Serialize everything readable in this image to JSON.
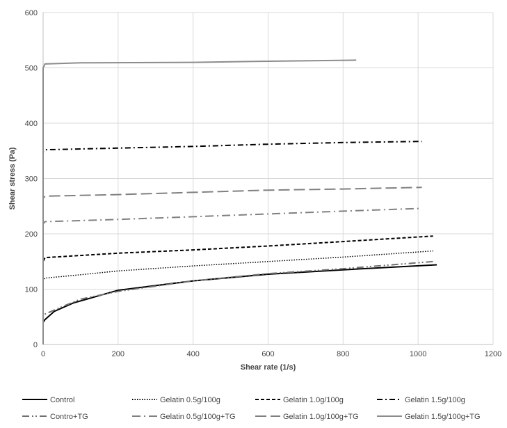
{
  "chart_data": {
    "type": "line",
    "title": "",
    "xlabel": "Shear rate (1/s)",
    "ylabel": "Shear stress (Pa)",
    "xlim": [
      0,
      1200
    ],
    "ylim": [
      0,
      600
    ],
    "xticks": [
      0,
      200,
      400,
      600,
      800,
      1000,
      1200
    ],
    "yticks": [
      0,
      100,
      200,
      300,
      400,
      500,
      600
    ],
    "grid": true,
    "legend_position": "bottom",
    "series": [
      {
        "name": "Control",
        "color": "#000000",
        "style": "solid",
        "x": [
          0,
          0,
          5,
          30,
          80,
          200,
          400,
          600,
          800,
          1050
        ],
        "y": [
          0,
          40,
          45,
          60,
          75,
          98,
          115,
          127,
          135,
          144
        ]
      },
      {
        "name": "Gelatin 0.5g/100g",
        "color": "#000000",
        "style": "dotted",
        "x": [
          0,
          0,
          5,
          100,
          200,
          400,
          600,
          800,
          1040
        ],
        "y": [
          0,
          115,
          120,
          126,
          133,
          142,
          150,
          158,
          169
        ]
      },
      {
        "name": "Gelatin 1.0g/100g",
        "color": "#000000",
        "style": "dashed",
        "x": [
          0,
          0,
          5,
          200,
          400,
          600,
          800,
          1040
        ],
        "y": [
          0,
          150,
          157,
          165,
          171,
          178,
          186,
          196
        ]
      },
      {
        "name": "Gelatin 1.5g/100g",
        "color": "#000000",
        "style": "dashdot",
        "x": [
          0,
          0,
          5,
          200,
          400,
          600,
          800,
          1010
        ],
        "y": [
          0,
          348,
          352,
          355,
          358,
          362,
          365,
          367
        ]
      },
      {
        "name": "Contro+TG",
        "color": "#707070",
        "style": "longdashdotdot",
        "x": [
          0,
          0,
          5,
          50,
          100,
          200,
          400,
          600,
          800,
          1040
        ],
        "y": [
          0,
          50,
          55,
          68,
          82,
          96,
          115,
          128,
          137,
          150
        ]
      },
      {
        "name": "Gelatin 0.5g/100g+TG",
        "color": "#808080",
        "style": "longdashdot",
        "x": [
          0,
          0,
          5,
          200,
          400,
          600,
          800,
          1010
        ],
        "y": [
          0,
          218,
          222,
          226,
          231,
          236,
          241,
          246
        ]
      },
      {
        "name": "Gelatin 1.0g/100g+TG",
        "color": "#808080",
        "style": "longdash",
        "x": [
          0,
          0,
          5,
          200,
          400,
          600,
          800,
          1010
        ],
        "y": [
          0,
          264,
          268,
          271,
          275,
          279,
          281,
          284
        ]
      },
      {
        "name": "Gelatin 1.5g/100g+TG",
        "color": "#8c8c8c",
        "style": "solid",
        "x": [
          0,
          0,
          5,
          100,
          400,
          600,
          835
        ],
        "y": [
          0,
          500,
          507,
          509,
          510,
          512,
          514
        ]
      }
    ]
  }
}
